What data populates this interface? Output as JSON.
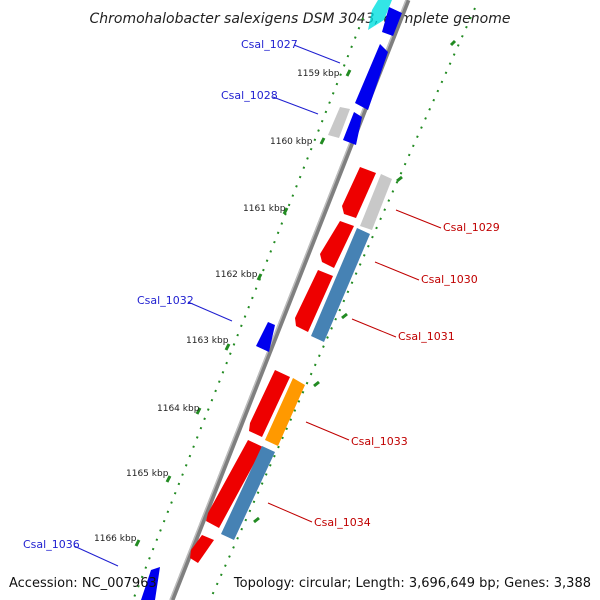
{
  "title": "Chromohalobacter salexigens DSM 3043, complete genome",
  "footer": {
    "accession": "Accession: NC_007963",
    "topology": "Topology: circular; Length: 3,696,649 bp; Genes: 3,388"
  },
  "ticks": [
    "1159 kbp",
    "1160 kbp",
    "1161 kbp",
    "1162 kbp",
    "1163 kbp",
    "1164 kbp",
    "1165 kbp",
    "1166 kbp"
  ],
  "gene_labels": {
    "csal_1027": "Csal_1027",
    "csal_1028": "Csal_1028",
    "csal_1029": "Csal_1029",
    "csal_1030": "Csal_1030",
    "csal_1031": "Csal_1031",
    "csal_1032": "Csal_1032",
    "csal_1033": "Csal_1033",
    "csal_1034": "Csal_1034",
    "csal_1036": "Csal_1036"
  },
  "colors": {
    "backbone": "#7f7f7f",
    "forward_gene": "#0000ee",
    "reverse_gene": "#ee0000",
    "cds_forward": "#c8c8c8",
    "cds_reverse": "#4682b4",
    "highlight": "#ff9900",
    "cyan_gene": "#00e0e0",
    "tick": "#228b22",
    "label_left": "#1f1fd0",
    "label_right": "#c00000"
  }
}
